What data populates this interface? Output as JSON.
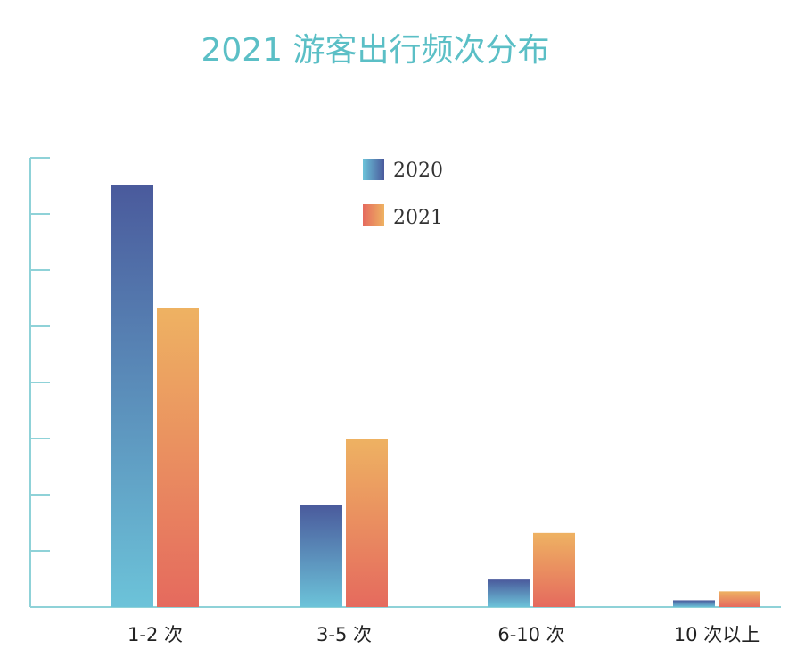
{
  "chart_data": {
    "type": "bar",
    "title": "2021 游客出行频次分布",
    "categories": [
      "1-2 次",
      "3-5 次",
      "6-10 次",
      "10 次以上"
    ],
    "series": [
      {
        "name": "2020",
        "values": [
          75.2,
          18.2,
          4.9,
          1.2
        ]
      },
      {
        "name": "2021",
        "values": [
          53.2,
          30.0,
          13.2,
          2.8
        ]
      }
    ],
    "ylim": [
      0,
      80
    ],
    "grid": false,
    "legend_position": "top-center",
    "colors": {
      "series_2020": [
        "#4a5a9c",
        "#6cc3d9"
      ],
      "series_2021": [
        "#eeb262",
        "#e56a5e"
      ],
      "axis": "#8fd2d8",
      "title": "#5bbfc6"
    }
  }
}
